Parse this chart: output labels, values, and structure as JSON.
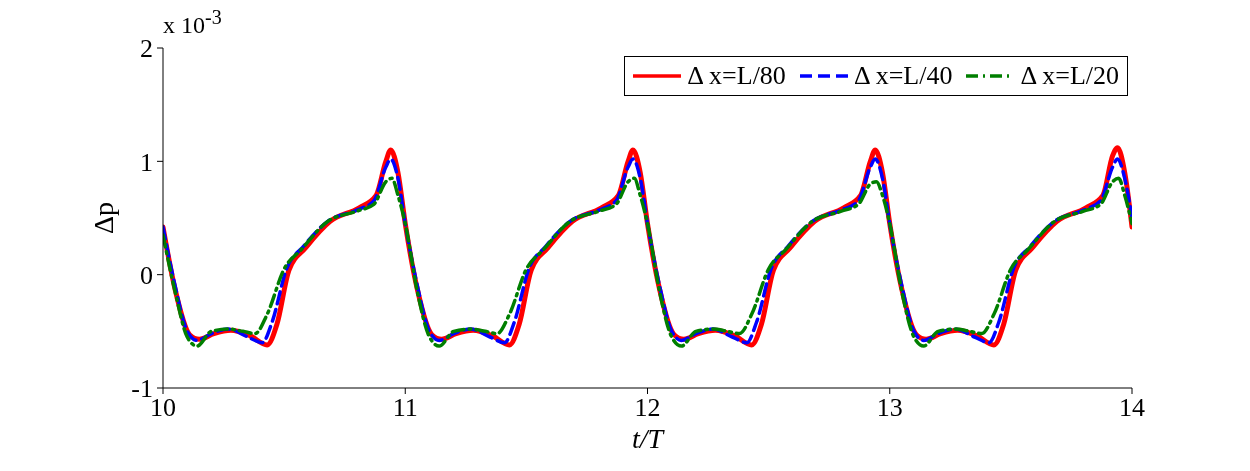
{
  "chart_data": {
    "type": "line",
    "xlabel": "t/T",
    "ylabel": "Δp",
    "annotations": [
      "x 10$^{-3}$"
    ],
    "xlim": [
      10,
      14
    ],
    "xticks": [
      10,
      11,
      12,
      13,
      14
    ],
    "ylim": [
      -1,
      2
    ],
    "yticks": [
      -1,
      0,
      1,
      2
    ],
    "grid": false,
    "legend": "top right",
    "marker": "none",
    "series": [
      {
        "name": "Δ x=L/80",
        "color": "#ff0000",
        "line_style": "solid",
        "x": [
          10,
          10.05,
          10.11,
          10.15,
          10.21,
          10.28,
          10.36,
          10.43,
          10.47,
          10.52,
          10.59,
          10.69,
          10.81,
          10.88,
          10.92,
          10.94,
          10.97,
          11,
          11.05,
          11.11,
          11.15,
          11.21,
          11.28,
          11.36,
          11.43,
          11.47,
          11.52,
          11.59,
          11.69,
          11.81,
          11.88,
          11.92,
          11.94,
          11.97,
          12,
          12.05,
          12.11,
          12.15,
          12.21,
          12.28,
          12.36,
          12.43,
          12.47,
          12.52,
          12.59,
          12.69,
          12.81,
          12.88,
          12.92,
          12.94,
          12.97,
          13,
          13.05,
          13.11,
          13.15,
          13.21,
          13.28,
          13.36,
          13.43,
          13.47,
          13.52,
          13.59,
          13.69,
          13.81,
          13.88,
          13.92,
          13.94,
          13.97,
          14
        ],
        "values": [
          0.42,
          -0.13,
          -0.53,
          -0.57,
          -0.52,
          -0.49,
          -0.54,
          -0.62,
          -0.44,
          0.04,
          0.24,
          0.47,
          0.59,
          0.7,
          1.0,
          1.1,
          0.9,
          0.45,
          -0.13,
          -0.53,
          -0.57,
          -0.52,
          -0.49,
          -0.54,
          -0.62,
          -0.44,
          0.04,
          0.24,
          0.47,
          0.59,
          0.7,
          1.0,
          1.1,
          0.9,
          0.45,
          -0.13,
          -0.53,
          -0.57,
          -0.52,
          -0.49,
          -0.54,
          -0.62,
          -0.44,
          0.04,
          0.24,
          0.47,
          0.59,
          0.7,
          1.0,
          1.1,
          0.9,
          0.45,
          -0.13,
          -0.53,
          -0.57,
          -0.52,
          -0.49,
          -0.54,
          -0.62,
          -0.44,
          0.04,
          0.24,
          0.47,
          0.59,
          0.7,
          1.05,
          1.12,
          0.9,
          0.42
        ]
      },
      {
        "name": "Δ x=L/40",
        "color": "#0000ff",
        "line_style": "dashed",
        "x": [
          10,
          10.05,
          10.1,
          10.14,
          10.2,
          10.27,
          10.35,
          10.41,
          10.45,
          10.51,
          10.58,
          10.68,
          10.8,
          10.87,
          10.92,
          10.94,
          10.97,
          11,
          11.05,
          11.1,
          11.14,
          11.2,
          11.27,
          11.35,
          11.41,
          11.45,
          11.51,
          11.58,
          11.68,
          11.8,
          11.87,
          11.92,
          11.94,
          11.97,
          12,
          12.05,
          12.1,
          12.14,
          12.2,
          12.27,
          12.35,
          12.41,
          12.45,
          12.51,
          12.58,
          12.68,
          12.8,
          12.87,
          12.92,
          12.94,
          12.97,
          13,
          13.05,
          13.1,
          13.14,
          13.2,
          13.27,
          13.35,
          13.41,
          13.45,
          13.51,
          13.58,
          13.68,
          13.8,
          13.87,
          13.92,
          13.94,
          13.97,
          14
        ],
        "values": [
          0.42,
          -0.1,
          -0.5,
          -0.58,
          -0.52,
          -0.48,
          -0.55,
          -0.6,
          -0.42,
          0.05,
          0.25,
          0.47,
          0.57,
          0.65,
          0.95,
          1.02,
          0.85,
          0.45,
          -0.1,
          -0.5,
          -0.58,
          -0.52,
          -0.48,
          -0.55,
          -0.6,
          -0.42,
          0.05,
          0.25,
          0.47,
          0.57,
          0.65,
          0.95,
          1.02,
          0.85,
          0.45,
          -0.1,
          -0.5,
          -0.58,
          -0.52,
          -0.48,
          -0.55,
          -0.6,
          -0.42,
          0.05,
          0.25,
          0.47,
          0.57,
          0.65,
          0.95,
          1.02,
          0.85,
          0.45,
          -0.1,
          -0.5,
          -0.58,
          -0.52,
          -0.48,
          -0.55,
          -0.6,
          -0.42,
          0.05,
          0.25,
          0.47,
          0.57,
          0.65,
          0.95,
          1.02,
          0.85,
          0.5
        ]
      },
      {
        "name": "Δ x=L/20",
        "color": "#007f00",
        "line_style": "dashdot",
        "x": [
          10,
          10.05,
          10.1,
          10.14,
          10.2,
          10.27,
          10.33,
          10.38,
          10.43,
          10.5,
          10.57,
          10.68,
          10.8,
          10.87,
          10.92,
          10.945,
          10.97,
          11,
          11.05,
          11.1,
          11.14,
          11.2,
          11.27,
          11.33,
          11.38,
          11.43,
          11.5,
          11.57,
          11.68,
          11.8,
          11.87,
          11.92,
          11.945,
          11.97,
          12,
          12.05,
          12.1,
          12.14,
          12.2,
          12.27,
          12.33,
          12.38,
          12.43,
          12.5,
          12.57,
          12.68,
          12.8,
          12.87,
          12.92,
          12.945,
          12.97,
          13,
          13.05,
          13.1,
          13.14,
          13.2,
          13.27,
          13.33,
          13.38,
          13.43,
          13.5,
          13.57,
          13.68,
          13.8,
          13.87,
          13.92,
          13.945,
          13.97,
          14
        ],
        "values": [
          0.35,
          -0.15,
          -0.55,
          -0.63,
          -0.5,
          -0.48,
          -0.5,
          -0.52,
          -0.35,
          0.05,
          0.22,
          0.47,
          0.56,
          0.62,
          0.82,
          0.85,
          0.7,
          0.45,
          -0.15,
          -0.55,
          -0.63,
          -0.5,
          -0.48,
          -0.5,
          -0.52,
          -0.35,
          0.05,
          0.22,
          0.47,
          0.56,
          0.62,
          0.82,
          0.85,
          0.7,
          0.45,
          -0.15,
          -0.55,
          -0.63,
          -0.5,
          -0.48,
          -0.5,
          -0.52,
          -0.35,
          0.05,
          0.22,
          0.47,
          0.56,
          0.62,
          0.8,
          0.82,
          0.7,
          0.45,
          -0.15,
          -0.55,
          -0.63,
          -0.5,
          -0.48,
          -0.5,
          -0.52,
          -0.35,
          0.05,
          0.22,
          0.47,
          0.56,
          0.62,
          0.82,
          0.85,
          0.7,
          0.45
        ]
      }
    ]
  }
}
